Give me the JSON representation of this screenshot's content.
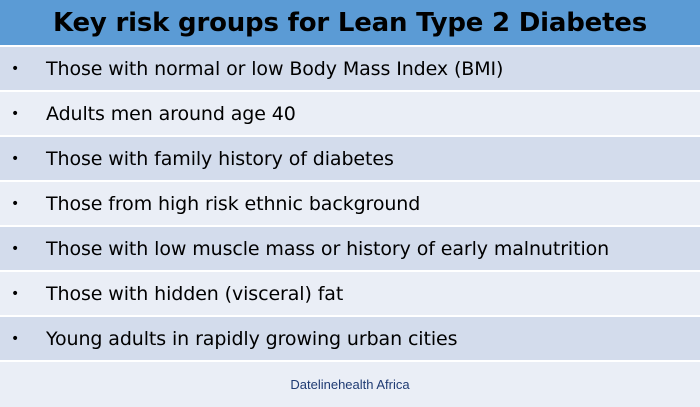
{
  "title": "Key risk groups for Lean Type 2 Diabetes",
  "bullet_glyph": "•",
  "items": [
    "Those with normal or low Body Mass Index (BMI)",
    "Adults men around age 40",
    "Those with family history of diabetes",
    "Those from high risk ethnic background",
    "Those with low muscle mass or history of early malnutrition",
    "Those with hidden (visceral) fat",
    "Young adults in rapidly growing urban cities"
  ],
  "footer": "Datelinehealth Africa",
  "colors": {
    "title_bar": "#5b9bd5",
    "row_odd": "#d3dcec",
    "row_even": "#eaeef6",
    "footer_text": "#1f3b73"
  }
}
